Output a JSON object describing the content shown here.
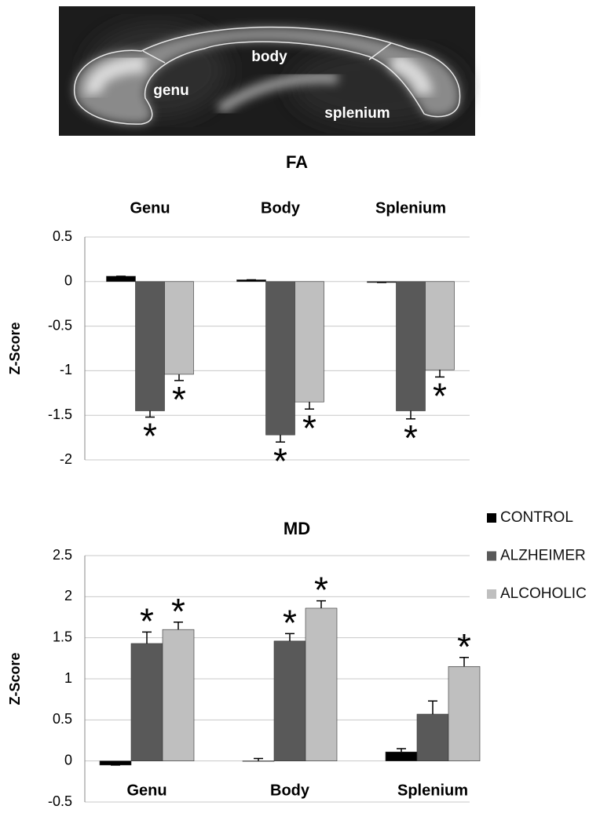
{
  "image": {
    "labels": [
      "body",
      "genu",
      "splenium"
    ]
  },
  "chart_data": [
    {
      "type": "bar",
      "title": "FA",
      "ylabel": "Z-Score",
      "category_position": "top",
      "categories": [
        "Genu",
        "Body",
        "Splenium"
      ],
      "ylim": [
        -2,
        0.5
      ],
      "yticks": [
        0.5,
        0,
        -0.5,
        -1,
        -1.5,
        -2
      ],
      "grid": true,
      "series": [
        {
          "color": "#000000",
          "values": [
            0.06,
            0.02,
            -0.01
          ],
          "errors": [
            0,
            0,
            0
          ],
          "labels": [
            null,
            null,
            null
          ]
        },
        {
          "color": "#595959",
          "values": [
            -1.45,
            -1.72,
            -1.45
          ],
          "errors": [
            0.07,
            0.08,
            0.09
          ],
          "labels": [
            "*",
            "*",
            "*"
          ]
        },
        {
          "color": "#bfbfbf",
          "values": [
            -1.04,
            -1.35,
            -0.99
          ],
          "errors": [
            0.07,
            0.08,
            0.08
          ],
          "labels": [
            "*",
            "*",
            "*"
          ]
        }
      ]
    },
    {
      "type": "bar",
      "title": "MD",
      "ylabel": "Z-Score",
      "category_position": "bottom",
      "legend": "right",
      "categories": [
        "Genu",
        "Body",
        "Splenium"
      ],
      "ylim": [
        -0.5,
        2.5
      ],
      "yticks": [
        2.5,
        2,
        1.5,
        1,
        0.5,
        0,
        -0.5
      ],
      "grid": true,
      "series": [
        {
          "name": "CONTROL",
          "color": "#000000",
          "values": [
            -0.05,
            0.0,
            0.11
          ],
          "errors": [
            0,
            0.03,
            0.04
          ],
          "labels": [
            null,
            null,
            null
          ]
        },
        {
          "name": "ALZHEIMER",
          "color": "#595959",
          "values": [
            1.43,
            1.46,
            0.57
          ],
          "errors": [
            0.14,
            0.09,
            0.16
          ],
          "labels": [
            "*",
            "*",
            null
          ]
        },
        {
          "name": "ALCOHOLIC",
          "color": "#bfbfbf",
          "values": [
            1.6,
            1.86,
            1.15
          ],
          "errors": [
            0.09,
            0.09,
            0.11
          ],
          "labels": [
            "*",
            "*",
            "*"
          ]
        }
      ]
    }
  ]
}
